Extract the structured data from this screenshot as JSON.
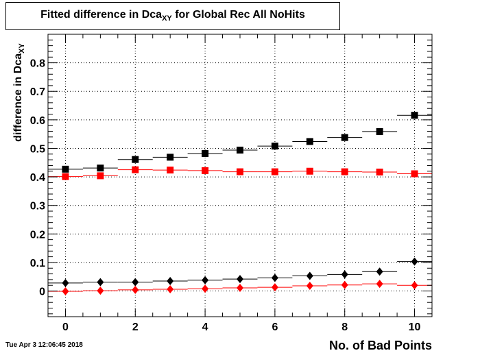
{
  "title": {
    "prefix": "Fitted difference in Dca",
    "sub": "XY",
    "suffix": " for Global Rec All NoHits"
  },
  "timestamp": "Tue Apr  3 12:06:45 2018",
  "chart_data": {
    "type": "scatter",
    "xlabel": "No. of Bad Points",
    "ylabel": {
      "prefix": "difference in Dca",
      "sub": "XY"
    },
    "xlim": [
      -0.5,
      10.5
    ],
    "ylim": [
      -0.09,
      0.9
    ],
    "grid": true,
    "x_ticks": [
      0,
      2,
      4,
      6,
      8,
      10
    ],
    "y_ticks": [
      0,
      0.1,
      0.2,
      0.3,
      0.4,
      0.5,
      0.6,
      0.7,
      0.8
    ],
    "x": [
      0,
      1,
      2,
      3,
      4,
      5,
      6,
      7,
      8,
      9,
      10
    ],
    "series": [
      {
        "marker": "square",
        "color": "#000000",
        "values": [
          0.427,
          0.431,
          0.461,
          0.469,
          0.482,
          0.494,
          0.508,
          0.524,
          0.538,
          0.559,
          0.616
        ]
      },
      {
        "marker": "square",
        "color": "#ff0000",
        "values": [
          0.401,
          0.404,
          0.425,
          0.424,
          0.422,
          0.418,
          0.418,
          0.42,
          0.418,
          0.417,
          0.411
        ]
      },
      {
        "marker": "diamond",
        "color": "#000000",
        "values": [
          0.028,
          0.031,
          0.031,
          0.035,
          0.038,
          0.042,
          0.046,
          0.053,
          0.058,
          0.068,
          0.103
        ]
      },
      {
        "marker": "diamond",
        "color": "#ff0000",
        "values": [
          -0.001,
          0.001,
          0.004,
          0.006,
          0.008,
          0.011,
          0.013,
          0.018,
          0.021,
          0.025,
          0.02
        ]
      }
    ]
  }
}
